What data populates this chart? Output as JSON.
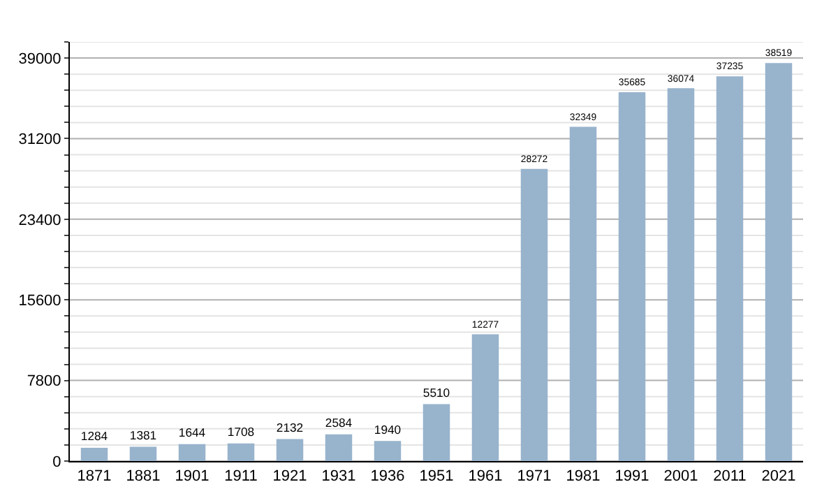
{
  "chart_data": {
    "type": "bar",
    "categories": [
      "1871",
      "1881",
      "1901",
      "1911",
      "1921",
      "1931",
      "1936",
      "1951",
      "1961",
      "1971",
      "1981",
      "1991",
      "2001",
      "2011",
      "2021"
    ],
    "values": [
      1284,
      1381,
      1644,
      1708,
      2132,
      2584,
      1940,
      5510,
      12277,
      28272,
      32349,
      35685,
      36074,
      37235,
      38519
    ],
    "color": "#98b3cc",
    "ylim": [
      0,
      40560
    ],
    "yticks": [
      0,
      {
        "value": 1560,
        "label": null
      },
      {
        "value": 3120,
        "label": null
      },
      {
        "value": 4680,
        "label": null
      },
      {
        "value": 6240,
        "label": null
      },
      7800,
      {
        "value": 9360,
        "label": null
      },
      {
        "value": 10920,
        "label": null
      },
      {
        "value": 12480,
        "label": null
      },
      {
        "value": 14040,
        "label": null
      },
      15600,
      {
        "value": 17160,
        "label": null
      },
      {
        "value": 18720,
        "label": null
      },
      {
        "value": 20280,
        "label": null
      },
      {
        "value": 21840,
        "label": null
      },
      23400,
      {
        "value": 24960,
        "label": null
      },
      {
        "value": 26520,
        "label": null
      },
      {
        "value": 28080,
        "label": null
      },
      {
        "value": 29640,
        "label": null
      },
      31200,
      {
        "value": 32760,
        "label": null
      },
      {
        "value": 34320,
        "label": null
      },
      {
        "value": 35880,
        "label": null
      },
      {
        "value": 37440,
        "label": null
      },
      39000,
      {
        "value": 40560,
        "label": null
      }
    ],
    "grid": "y",
    "data_labels": true
  }
}
